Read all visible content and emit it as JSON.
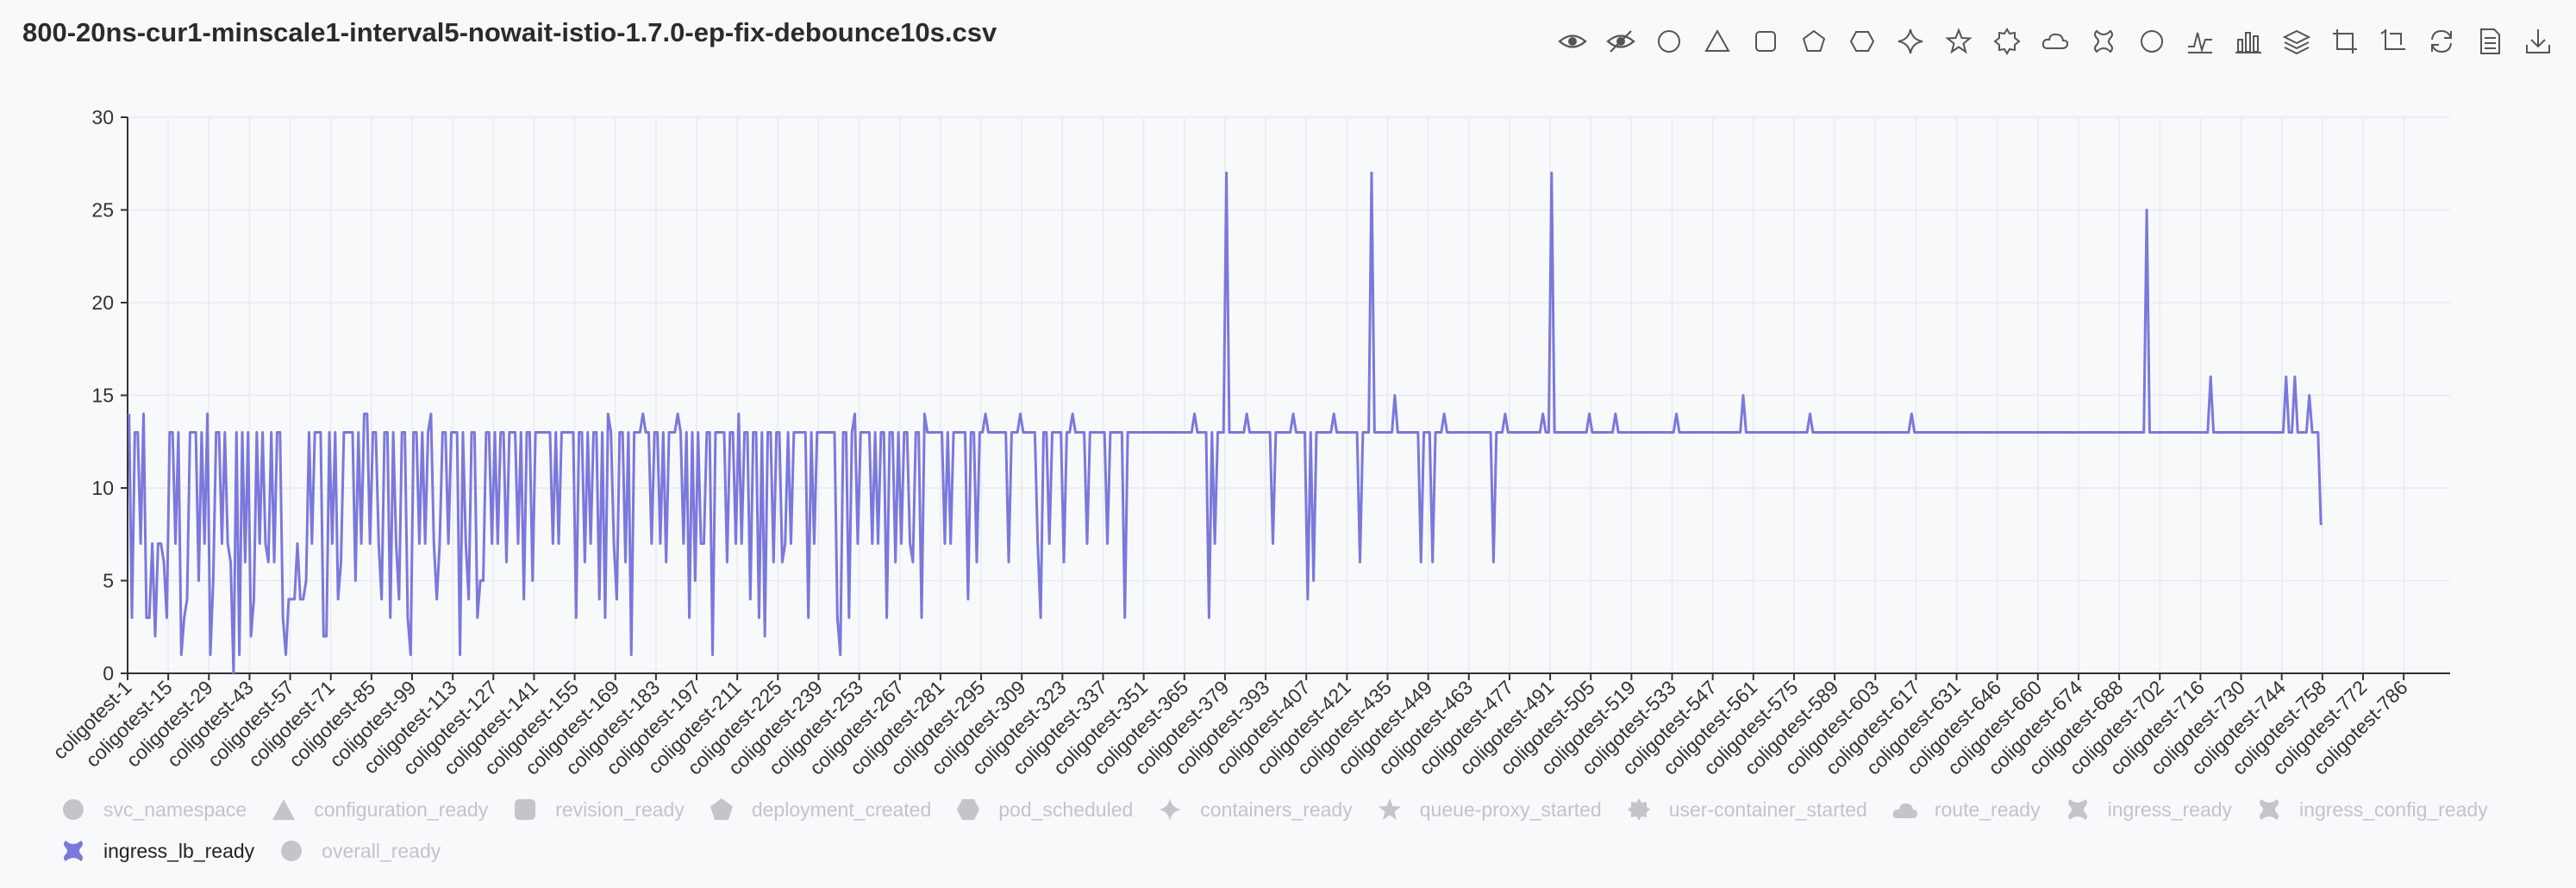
{
  "title": "800-20ns-cur1-minscale1-interval5-nowait-istio-1.7.0-ep-fix-debounce10s.csv",
  "toolbar": [
    {
      "icon": "eye-icon"
    },
    {
      "icon": "eye-off-icon"
    },
    {
      "icon": "circle-icon"
    },
    {
      "icon": "triangle-icon"
    },
    {
      "icon": "square-icon"
    },
    {
      "icon": "pentagon-icon"
    },
    {
      "icon": "hexagon-icon"
    },
    {
      "icon": "diamond-star-icon"
    },
    {
      "icon": "star-icon"
    },
    {
      "icon": "badge-icon"
    },
    {
      "icon": "cloud-icon"
    },
    {
      "icon": "cross-icon"
    },
    {
      "icon": "ring-icon"
    },
    {
      "icon": "line-chart-icon"
    },
    {
      "icon": "bar-chart-icon"
    },
    {
      "icon": "stack-icon"
    },
    {
      "icon": "zoom-icon"
    },
    {
      "icon": "zoom-reset-icon"
    },
    {
      "icon": "restore-icon"
    },
    {
      "icon": "data-view-icon"
    },
    {
      "icon": "download-icon"
    }
  ],
  "colors": {
    "series": "#7b78dc",
    "axis": "#333333",
    "grid": "#e9eaee",
    "legend_inactive": "#c4c5c9"
  },
  "legend": [
    {
      "label": "svc_namespace",
      "shape": "circle",
      "active": false
    },
    {
      "label": "configuration_ready",
      "shape": "triangle",
      "active": false
    },
    {
      "label": "revision_ready",
      "shape": "roundrect",
      "active": false
    },
    {
      "label": "deployment_created",
      "shape": "pentagon",
      "active": false
    },
    {
      "label": "pod_scheduled",
      "shape": "hexagon",
      "active": false
    },
    {
      "label": "containers_ready",
      "shape": "sparkle",
      "active": false
    },
    {
      "label": "queue-proxy_started",
      "shape": "star",
      "active": false
    },
    {
      "label": "user-container_started",
      "shape": "badge",
      "active": false
    },
    {
      "label": "route_ready",
      "shape": "cloud",
      "active": false
    },
    {
      "label": "ingress_ready",
      "shape": "cross",
      "active": false
    },
    {
      "label": "ingress_config_ready",
      "shape": "cross",
      "active": false
    },
    {
      "label": "ingress_lb_ready",
      "shape": "cross",
      "active": true
    },
    {
      "label": "overall_ready",
      "shape": "circle",
      "active": false
    }
  ],
  "chart_data": {
    "type": "line",
    "series_name": "ingress_lb_ready",
    "x_prefix": "coligotest-",
    "x_count": 800,
    "x_label_step": 14,
    "x_labels": [
      "coligotest-1",
      "coligotest-15",
      "coligotest-29",
      "coligotest-43",
      "coligotest-57",
      "coligotest-71",
      "coligotest-85",
      "coligotest-99",
      "coligotest-113",
      "coligotest-127",
      "coligotest-141",
      "coligotest-155",
      "coligotest-169",
      "coligotest-183",
      "coligotest-197",
      "coligotest-211",
      "coligotest-225",
      "coligotest-239",
      "coligotest-253",
      "coligotest-267",
      "coligotest-281",
      "coligotest-295",
      "coligotest-309",
      "coligotest-323",
      "coligotest-337",
      "coligotest-351",
      "coligotest-365",
      "coligotest-379",
      "coligotest-393",
      "coligotest-407",
      "coligotest-421",
      "coligotest-435",
      "coligotest-449",
      "coligotest-463",
      "coligotest-477",
      "coligotest-491",
      "coligotest-505",
      "coligotest-519",
      "coligotest-533",
      "coligotest-547",
      "coligotest-561",
      "coligotest-575",
      "coligotest-589",
      "coligotest-603",
      "coligotest-617",
      "coligotest-631",
      "coligotest-646",
      "coligotest-660",
      "coligotest-674",
      "coligotest-688",
      "coligotest-702",
      "coligotest-716",
      "coligotest-730",
      "coligotest-744",
      "coligotest-758",
      "coligotest-772",
      "coligotest-786"
    ],
    "y_ticks": [
      0,
      5,
      10,
      15,
      20,
      25,
      30
    ],
    "ylim": [
      0,
      30
    ],
    "grid": true,
    "values": [
      14,
      3,
      13,
      13,
      7,
      14,
      3,
      3,
      7,
      2,
      7,
      7,
      6,
      3,
      13,
      13,
      7,
      13,
      1,
      3,
      4,
      13,
      13,
      13,
      5,
      13,
      7,
      14,
      1,
      5,
      13,
      13,
      7,
      13,
      7,
      6,
      0,
      13,
      1,
      13,
      6,
      13,
      2,
      4,
      13,
      7,
      13,
      7,
      6,
      13,
      6,
      13,
      13,
      3,
      1,
      4,
      4,
      4,
      7,
      4,
      4,
      5,
      13,
      7,
      13,
      13,
      13,
      2,
      2,
      13,
      7,
      13,
      4,
      6,
      13,
      13,
      13,
      13,
      5,
      13,
      7,
      14,
      14,
      7,
      13,
      13,
      7,
      4,
      13,
      13,
      3,
      13,
      7,
      4,
      13,
      13,
      3,
      1,
      13,
      13,
      7,
      13,
      7,
      13,
      14,
      7,
      4,
      7,
      13,
      13,
      7,
      13,
      13,
      13,
      1,
      13,
      7,
      4,
      13,
      13,
      3,
      5,
      5,
      13,
      13,
      7,
      13,
      7,
      13,
      13,
      6,
      13,
      13,
      13,
      7,
      13,
      4,
      13,
      13,
      5,
      13,
      13,
      13,
      13,
      13,
      13,
      7,
      13,
      7,
      13,
      13,
      13,
      13,
      13,
      3,
      13,
      13,
      6,
      13,
      7,
      13,
      13,
      4,
      13,
      3,
      14,
      13,
      7,
      4,
      13,
      13,
      6,
      13,
      1,
      13,
      13,
      13,
      14,
      13,
      13,
      7,
      13,
      13,
      7,
      13,
      6,
      13,
      13,
      13,
      14,
      13,
      7,
      13,
      3,
      13,
      5,
      13,
      7,
      7,
      13,
      13,
      1,
      13,
      13,
      13,
      13,
      6,
      13,
      13,
      7,
      14,
      7,
      13,
      13,
      4,
      13,
      13,
      3,
      13,
      2,
      13,
      13,
      6,
      13,
      13,
      6,
      7,
      13,
      7,
      13,
      13,
      13,
      13,
      13,
      3,
      13,
      7,
      13,
      13,
      13,
      13,
      13,
      13,
      13,
      3,
      1,
      13,
      13,
      3,
      13,
      14,
      7,
      13,
      13,
      13,
      13,
      7,
      13,
      7,
      13,
      13,
      3,
      13,
      13,
      6,
      13,
      7,
      13,
      13,
      7,
      6,
      13,
      13,
      3,
      14,
      13,
      13,
      13,
      13,
      13,
      13,
      7,
      13,
      7,
      13,
      13,
      13,
      13,
      13,
      4,
      13,
      13,
      6,
      13,
      13,
      14,
      13,
      13,
      13,
      13,
      13,
      13,
      13,
      6,
      13,
      13,
      13,
      14,
      13,
      13,
      13,
      13,
      13,
      7,
      3,
      13,
      13,
      7,
      13,
      13,
      13,
      13,
      6,
      13,
      13,
      14,
      13,
      13,
      13,
      13,
      7,
      13,
      13,
      13,
      13,
      13,
      13,
      7,
      13,
      13,
      13,
      13,
      13,
      3,
      13,
      13,
      13,
      13,
      13,
      13,
      13,
      13,
      13,
      13,
      13,
      13,
      13,
      13,
      13,
      13,
      13,
      13,
      13,
      13,
      13,
      13,
      13,
      14,
      13,
      13,
      13,
      13,
      3,
      13,
      7,
      13,
      13,
      13,
      27,
      13,
      13,
      13,
      13,
      13,
      13,
      14,
      13,
      13,
      13,
      13,
      13,
      13,
      13,
      13,
      7,
      13,
      13,
      13,
      13,
      13,
      13,
      14,
      13,
      13,
      13,
      13,
      4,
      13,
      5,
      13,
      13,
      13,
      13,
      13,
      13,
      14,
      13,
      13,
      13,
      13,
      13,
      13,
      13,
      13,
      6,
      13,
      13,
      13,
      27,
      13,
      13,
      13,
      13,
      13,
      13,
      13,
      15,
      13,
      13,
      13,
      13,
      13,
      13,
      13,
      13,
      6,
      13,
      13,
      13,
      6,
      13,
      13,
      13,
      14,
      13,
      13,
      13,
      13,
      13,
      13,
      13,
      13,
      13,
      13,
      13,
      13,
      13,
      13,
      13,
      13,
      6,
      13,
      13,
      13,
      14,
      13,
      13,
      13,
      13,
      13,
      13,
      13,
      13,
      13,
      13,
      13,
      13,
      14,
      13,
      13,
      27,
      13,
      13,
      13,
      13,
      13,
      13,
      13,
      13,
      13,
      13,
      13,
      13,
      14,
      13,
      13,
      13,
      13,
      13,
      13,
      13,
      13,
      14,
      13,
      13,
      13,
      13,
      13,
      13,
      13,
      13,
      13,
      13,
      13,
      13,
      13,
      13,
      13,
      13,
      13,
      13,
      13,
      13,
      14,
      13,
      13,
      13,
      13,
      13,
      13,
      13,
      13,
      13,
      13,
      13,
      13,
      13,
      13,
      13,
      13,
      13,
      13,
      13,
      13,
      13,
      13,
      15,
      13,
      13,
      13,
      13,
      13,
      13,
      13,
      13,
      13,
      13,
      13,
      13,
      13,
      13,
      13,
      13,
      13,
      13,
      13,
      13,
      13,
      13,
      14,
      13,
      13,
      13,
      13,
      13,
      13,
      13,
      13,
      13,
      13,
      13,
      13,
      13,
      13,
      13,
      13,
      13,
      13,
      13,
      13,
      13,
      13,
      13,
      13,
      13,
      13,
      13,
      13,
      13,
      13,
      13,
      13,
      13,
      13,
      14,
      13,
      13,
      13,
      13,
      13,
      13,
      13,
      13,
      13,
      13,
      13,
      13,
      13,
      13,
      13,
      13,
      13,
      13,
      13,
      13,
      13,
      13,
      13,
      13,
      13,
      13,
      13,
      13,
      13,
      13,
      13,
      13,
      13,
      13,
      13,
      13,
      13,
      13,
      13,
      13,
      13,
      13,
      13,
      13,
      13,
      13,
      13,
      13,
      13,
      13,
      13,
      13,
      13,
      13,
      13,
      13,
      13,
      13,
      13,
      13,
      13,
      13,
      13,
      13,
      13,
      13,
      13,
      13,
      13,
      13,
      13,
      13,
      13,
      13,
      13,
      13,
      13,
      13,
      13,
      13,
      25,
      13,
      13,
      13,
      13,
      13,
      13,
      13,
      13,
      13,
      13,
      13,
      13,
      13,
      13,
      13,
      13,
      13,
      13,
      13,
      13,
      13,
      16,
      13,
      13,
      13,
      13,
      13,
      13,
      13,
      13,
      13,
      13,
      13,
      13,
      13,
      13,
      13,
      13,
      13,
      13,
      13,
      13,
      13,
      13,
      13,
      13,
      13,
      16,
      13,
      13,
      16,
      13,
      13,
      13,
      13,
      15,
      13,
      13,
      13,
      8
    ]
  }
}
